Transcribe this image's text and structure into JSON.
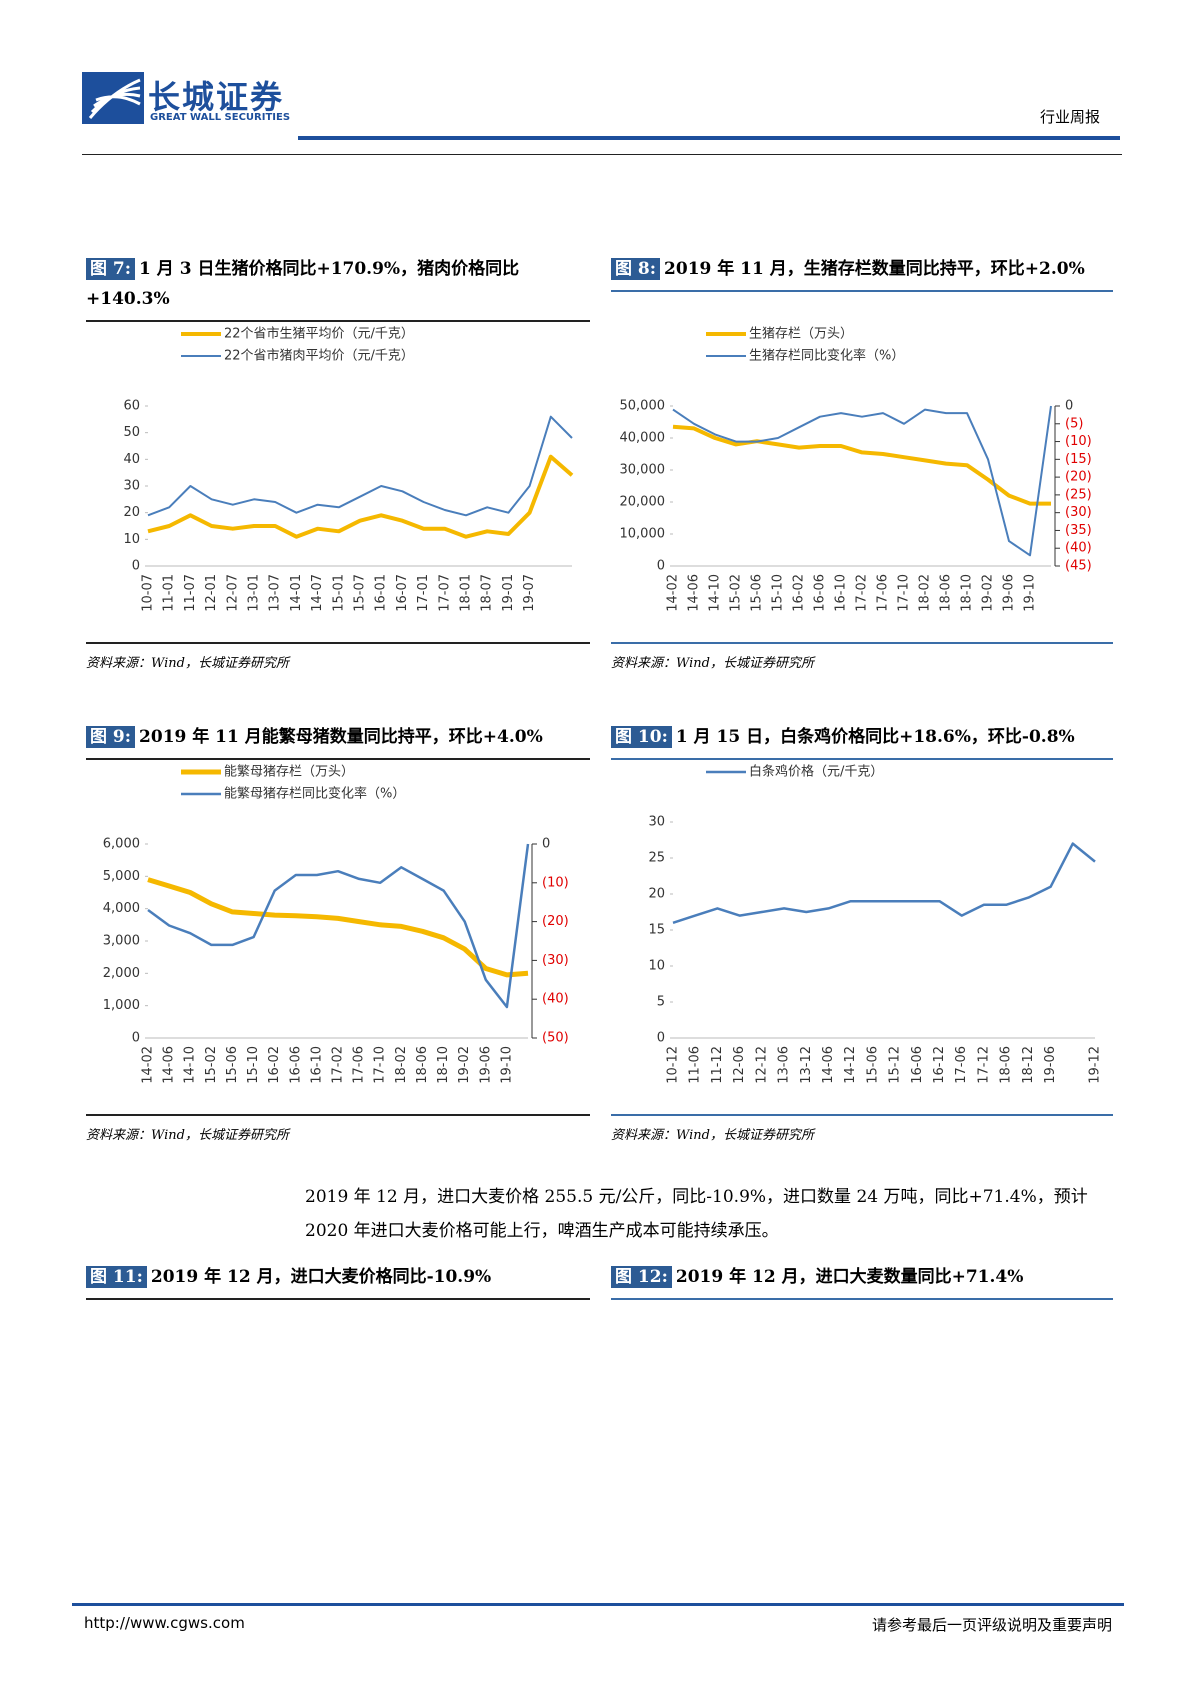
{
  "header": {
    "company": "长城证券",
    "company_en": "GREAT WALL SECURITIES",
    "report_type": "行业周报"
  },
  "figures": [
    {
      "label": "图 7:",
      "title": "1 月 3 日生猪价格同比+170.9%，猪肉价格同比+140.3%",
      "source": "资料来源：Wind，长城证券研究所",
      "chart_data": {
        "type": "line",
        "categories": [
          "10-07",
          "11-01",
          "11-07",
          "12-01",
          "12-07",
          "13-01",
          "13-07",
          "14-01",
          "14-07",
          "15-01",
          "15-07",
          "16-01",
          "16-07",
          "17-01",
          "17-07",
          "18-01",
          "18-07",
          "19-01",
          "19-07",
          null,
          null
        ],
        "series": [
          {
            "name": "22个省市生猪平均价（元/千克）",
            "color": "#f5b800",
            "width": 4,
            "values": [
              13,
              15,
              19,
              15,
              14,
              15,
              15,
              11,
              14,
              13,
              17,
              19,
              17,
              14,
              14,
              11,
              13,
              12,
              20,
              41,
              34
            ]
          },
          {
            "name": "22个省市猪肉平均价（元/千克）",
            "color": "#4a7ebb",
            "width": 2,
            "values": [
              19,
              22,
              30,
              25,
              23,
              25,
              24,
              20,
              23,
              22,
              26,
              30,
              28,
              24,
              21,
              19,
              22,
              20,
              30,
              56,
              48
            ]
          }
        ],
        "ylim": [
          0,
          60
        ],
        "yticks": [
          0,
          10,
          20,
          30,
          40,
          50,
          60
        ],
        "grid": false
      }
    },
    {
      "label": "图 8:",
      "title": "2019 年 11 月，生猪存栏数量同比持平，环比+2.0%",
      "source": "资料来源：Wind，长城证券研究所",
      "chart_data": {
        "type": "line",
        "categories": [
          "14-02",
          "14-06",
          "14-10",
          "15-02",
          "15-06",
          "15-10",
          "16-02",
          "16-06",
          "16-10",
          "17-02",
          "17-06",
          "17-10",
          "18-02",
          "18-06",
          "18-10",
          "19-02",
          "19-06",
          "19-10",
          null
        ],
        "series": [
          {
            "name": "生猪存栏（万头）",
            "color": "#f5b800",
            "width": 4,
            "values": [
              43500,
              43000,
              40000,
              38000,
              39000,
              38000,
              37000,
              37500,
              37500,
              35500,
              35000,
              34000,
              33000,
              32000,
              31500,
              27000,
              22000,
              19500,
              19500
            ]
          },
          {
            "name": "生猪存栏同比变化率（%）",
            "color": "#4a7ebb",
            "width": 2,
            "axis": "y2",
            "values": [
              -1,
              -5,
              -8,
              -10,
              -10,
              -9,
              -6,
              -3,
              -2,
              -3,
              -2,
              -5,
              -1,
              -2,
              -2,
              -15,
              -38,
              -42,
              0
            ]
          }
        ],
        "ylim": [
          0,
          50000
        ],
        "yticks": [
          0,
          {
            "value": 10000,
            "label": "10,000"
          },
          {
            "value": 20000,
            "label": "20,000"
          },
          {
            "value": 30000,
            "label": "30,000"
          },
          {
            "value": 40000,
            "label": "40,000"
          },
          {
            "value": 50000,
            "label": "50,000"
          }
        ],
        "y2lim": [
          -45,
          0
        ],
        "y2ticks": [
          0,
          {
            "value": -5,
            "label": "(5)"
          },
          {
            "value": -10,
            "label": "(10)"
          },
          {
            "value": -15,
            "label": "(15)"
          },
          {
            "value": -20,
            "label": "(20)"
          },
          {
            "value": -25,
            "label": "(25)"
          },
          {
            "value": -30,
            "label": "(30)"
          },
          {
            "value": -35,
            "label": "(35)"
          },
          {
            "value": -40,
            "label": "(40)"
          },
          {
            "value": -45,
            "label": "(45)"
          }
        ],
        "y2_tick_color": "#e00000",
        "grid": false
      }
    },
    {
      "label": "图 9:",
      "title": "2019 年 11 月能繁母猪数量同比持平，环比+4.0%",
      "source": "资料来源：Wind，长城证券研究所",
      "chart_data": {
        "type": "line",
        "categories": [
          "14-02",
          "14-06",
          "14-10",
          "15-02",
          "15-06",
          "15-10",
          "16-02",
          "16-06",
          "16-10",
          "17-02",
          "17-06",
          "17-10",
          "18-02",
          "18-06",
          "18-10",
          "19-02",
          "19-06",
          "19-10",
          null
        ],
        "series": [
          {
            "name": "能繁母猪存栏（万头）",
            "color": "#f5b800",
            "width": 5,
            "values": [
              4900,
              4700,
              4500,
              4150,
              3900,
              3850,
              3800,
              3780,
              3750,
              3700,
              3600,
              3500,
              3450,
              3300,
              3100,
              2750,
              2150,
              1950,
              2000
            ]
          },
          {
            "name": "能繁母猪存栏同比变化率（%）",
            "color": "#4a7ebb",
            "width": 2.5,
            "axis": "y2",
            "values": [
              -17,
              -21,
              -23,
              -26,
              -26,
              -24,
              -12,
              -8,
              -8,
              -7,
              -9,
              -10,
              -6,
              -9,
              -12,
              -20,
              -35,
              -42,
              0
            ]
          }
        ],
        "ylim": [
          0,
          6000
        ],
        "yticks": [
          0,
          {
            "value": 1000,
            "label": "1,000"
          },
          {
            "value": 2000,
            "label": "2,000"
          },
          {
            "value": 3000,
            "label": "3,000"
          },
          {
            "value": 4000,
            "label": "4,000"
          },
          {
            "value": 5000,
            "label": "5,000"
          },
          {
            "value": 6000,
            "label": "6,000"
          }
        ],
        "y2lim": [
          -50,
          0
        ],
        "y2ticks": [
          0,
          {
            "value": -10,
            "label": "(10)"
          },
          {
            "value": -20,
            "label": "(20)"
          },
          {
            "value": -30,
            "label": "(30)"
          },
          {
            "value": -40,
            "label": "(40)"
          },
          {
            "value": -50,
            "label": "(50)"
          }
        ],
        "y2_tick_color": "#e00000",
        "grid": false
      }
    },
    {
      "label": "图 10:",
      "title": "1 月 15 日，白条鸡价格同比+18.6%，环比-0.8%",
      "source": "资料来源：Wind，长城证券研究所",
      "chart_data": {
        "type": "line",
        "categories": [
          "10-12",
          "11-06",
          "11-12",
          "12-06",
          "12-12",
          "13-06",
          "13-12",
          "14-06",
          "14-12",
          "15-06",
          "15-12",
          "16-06",
          "16-12",
          "17-06",
          "17-12",
          "18-06",
          "18-12",
          "19-06",
          null,
          "19-12"
        ],
        "series": [
          {
            "name": "白条鸡价格（元/千克）",
            "color": "#4a7ebb",
            "width": 2.5,
            "values": [
              16,
              17,
              18,
              17,
              17.5,
              18,
              17.5,
              18,
              19,
              19,
              19,
              19,
              19,
              17,
              18.5,
              18.5,
              19.5,
              21,
              27,
              24.5
            ]
          }
        ],
        "ylim": [
          0,
          30
        ],
        "yticks": [
          0,
          5,
          10,
          15,
          20,
          25,
          30
        ],
        "grid": false
      }
    },
    {
      "label": "图 11:",
      "title": "2019 年 12 月，进口大麦价格同比-10.9%"
    },
    {
      "label": "图 12:",
      "title": "2019 年 12 月，进口大麦数量同比+71.4%"
    }
  ],
  "paragraph": "2019 年 12 月，进口大麦价格 255.5 元/公斤，同比-10.9%，进口数量 24 万吨，同比+71.4%，预计 2020 年进口大麦价格可能上行，啤酒生产成本可能持续承压。",
  "footer": {
    "url": "http://www.cgws.com",
    "disclaimer": "请参考最后一页评级说明及重要声明"
  }
}
